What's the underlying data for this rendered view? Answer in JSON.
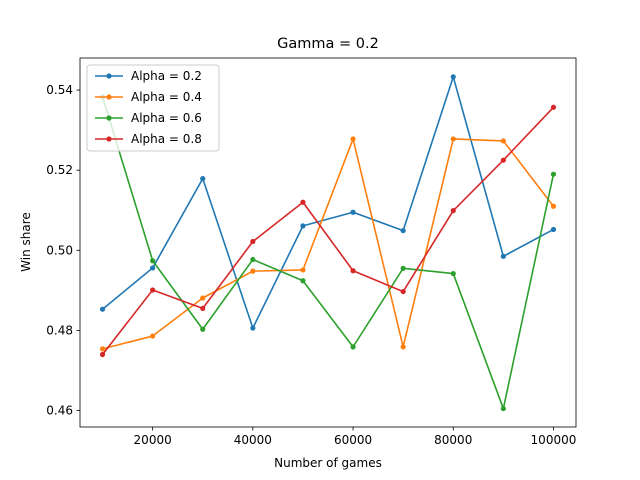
{
  "chart_data": {
    "type": "line",
    "title": "Gamma = 0.2",
    "xlabel": "Number of games",
    "ylabel": "Win share",
    "x": [
      10000,
      20000,
      30000,
      40000,
      50000,
      60000,
      70000,
      80000,
      90000,
      100000
    ],
    "xlim": [
      5500,
      104500
    ],
    "ylim": [
      0.4559,
      0.548
    ],
    "x_ticks": [
      20000,
      40000,
      60000,
      80000,
      100000
    ],
    "x_tick_labels": [
      "20000",
      "40000",
      "60000",
      "80000",
      "100000"
    ],
    "y_ticks": [
      0.46,
      0.48,
      0.5,
      0.52,
      0.54
    ],
    "y_tick_labels": [
      "0.46",
      "0.48",
      "0.50",
      "0.52",
      "0.54"
    ],
    "grid": false,
    "legend_position": "top-left",
    "series": [
      {
        "name": "Alpha = 0.2",
        "color": "#1f77b4",
        "values": [
          0.4853,
          0.4956,
          0.5179,
          0.4806,
          0.5061,
          0.5095,
          0.5049,
          0.5433,
          0.4985,
          0.5052
        ]
      },
      {
        "name": "Alpha = 0.4",
        "color": "#ff7f0e",
        "values": [
          0.4754,
          0.4786,
          0.4881,
          0.4948,
          0.4951,
          0.5278,
          0.4759,
          0.5278,
          0.5273,
          0.511
        ]
      },
      {
        "name": "Alpha = 0.6",
        "color": "#2ca02c",
        "values": [
          0.5383,
          0.4974,
          0.4803,
          0.4977,
          0.4924,
          0.4759,
          0.4955,
          0.4942,
          0.4605,
          0.519
        ]
      },
      {
        "name": "Alpha = 0.8",
        "color": "#d62728",
        "values": [
          0.474,
          0.4901,
          0.4855,
          0.5022,
          0.512,
          0.4949,
          0.4897,
          0.5099,
          0.5225,
          0.5357
        ]
      }
    ]
  }
}
